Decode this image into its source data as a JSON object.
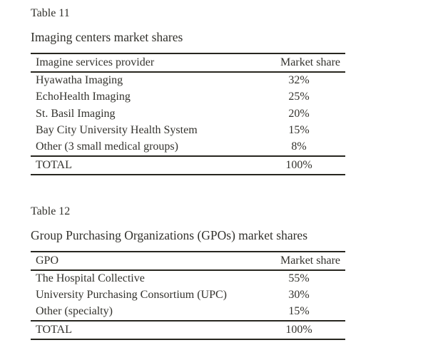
{
  "page": {
    "background": "#ffffff",
    "text_color": "#32312c",
    "rule_color": "#27261f"
  },
  "tables": [
    {
      "label": "Table 11",
      "title": "Imaging centers market shares",
      "columns": [
        "Imagine services provider",
        "Market share"
      ],
      "rows": [
        [
          "Hyawatha Imaging",
          "32%"
        ],
        [
          "EchoHealth Imaging",
          "25%"
        ],
        [
          "St. Basil Imaging",
          "20%"
        ],
        [
          "Bay City University Health System",
          "15%"
        ],
        [
          "Other (3 small medical groups)",
          "8%"
        ]
      ],
      "total": [
        "TOTAL",
        "100%"
      ]
    },
    {
      "label": "Table 12",
      "title": "Group Purchasing Organizations (GPOs) market shares",
      "columns": [
        "GPO",
        "Market share"
      ],
      "rows": [
        [
          "The Hospital Collective",
          "55%"
        ],
        [
          "University Purchasing Consortium (UPC)",
          "30%"
        ],
        [
          "Other (specialty)",
          "15%"
        ]
      ],
      "total": [
        "TOTAL",
        "100%"
      ]
    }
  ]
}
